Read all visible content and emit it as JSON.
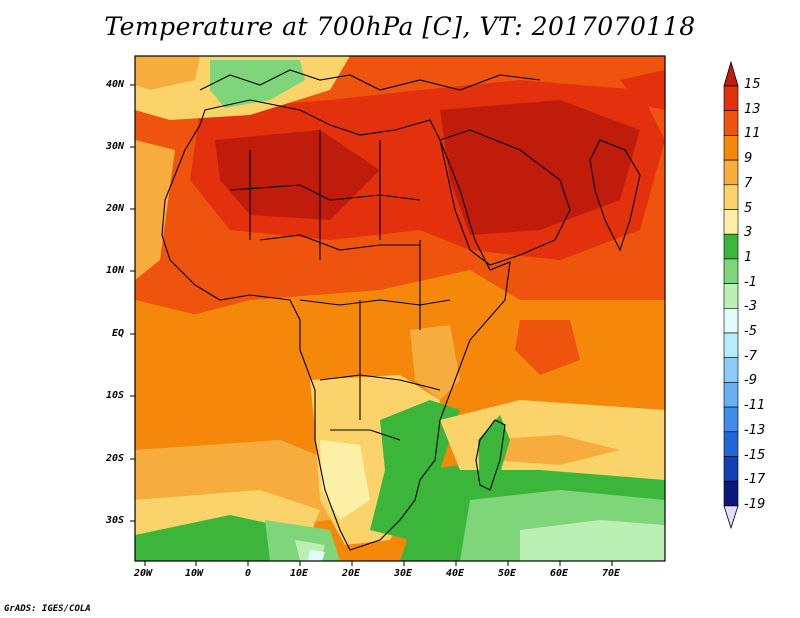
{
  "title": "Temperature at 700hPa [C], VT: 2017070118",
  "credit": "GrADS: IGES/COLA",
  "map": {
    "lat_labels": [
      "40N",
      "30N",
      "20N",
      "10N",
      "EQ",
      "10S",
      "20S",
      "30S"
    ],
    "lon_labels": [
      "20W",
      "10W",
      "0",
      "10E",
      "20E",
      "30E",
      "40E",
      "50E",
      "60E",
      "70E"
    ],
    "extent": {
      "lon": [
        -22,
        80
      ],
      "lat": [
        -36,
        45
      ]
    }
  },
  "colorbar": {
    "labels": [
      "15",
      "13",
      "11",
      "9",
      "7",
      "5",
      "3",
      "1",
      "-1",
      "-3",
      "-5",
      "-7",
      "-9",
      "-11",
      "-13",
      "-15",
      "-17",
      "-19"
    ],
    "colors": [
      "#c01c0c",
      "#e2310c",
      "#ee540e",
      "#f5870b",
      "#f7ac3e",
      "#fbd36b",
      "#fcf0a7",
      "#3cb63a",
      "#7ed57a",
      "#bbf0b4",
      "#e2fbfb",
      "#b4ecfb",
      "#8ccbf7",
      "#67b0f1",
      "#418ceb",
      "#2366d8",
      "#1440b5",
      "#0b1878",
      "#e4dcfc"
    ]
  }
}
